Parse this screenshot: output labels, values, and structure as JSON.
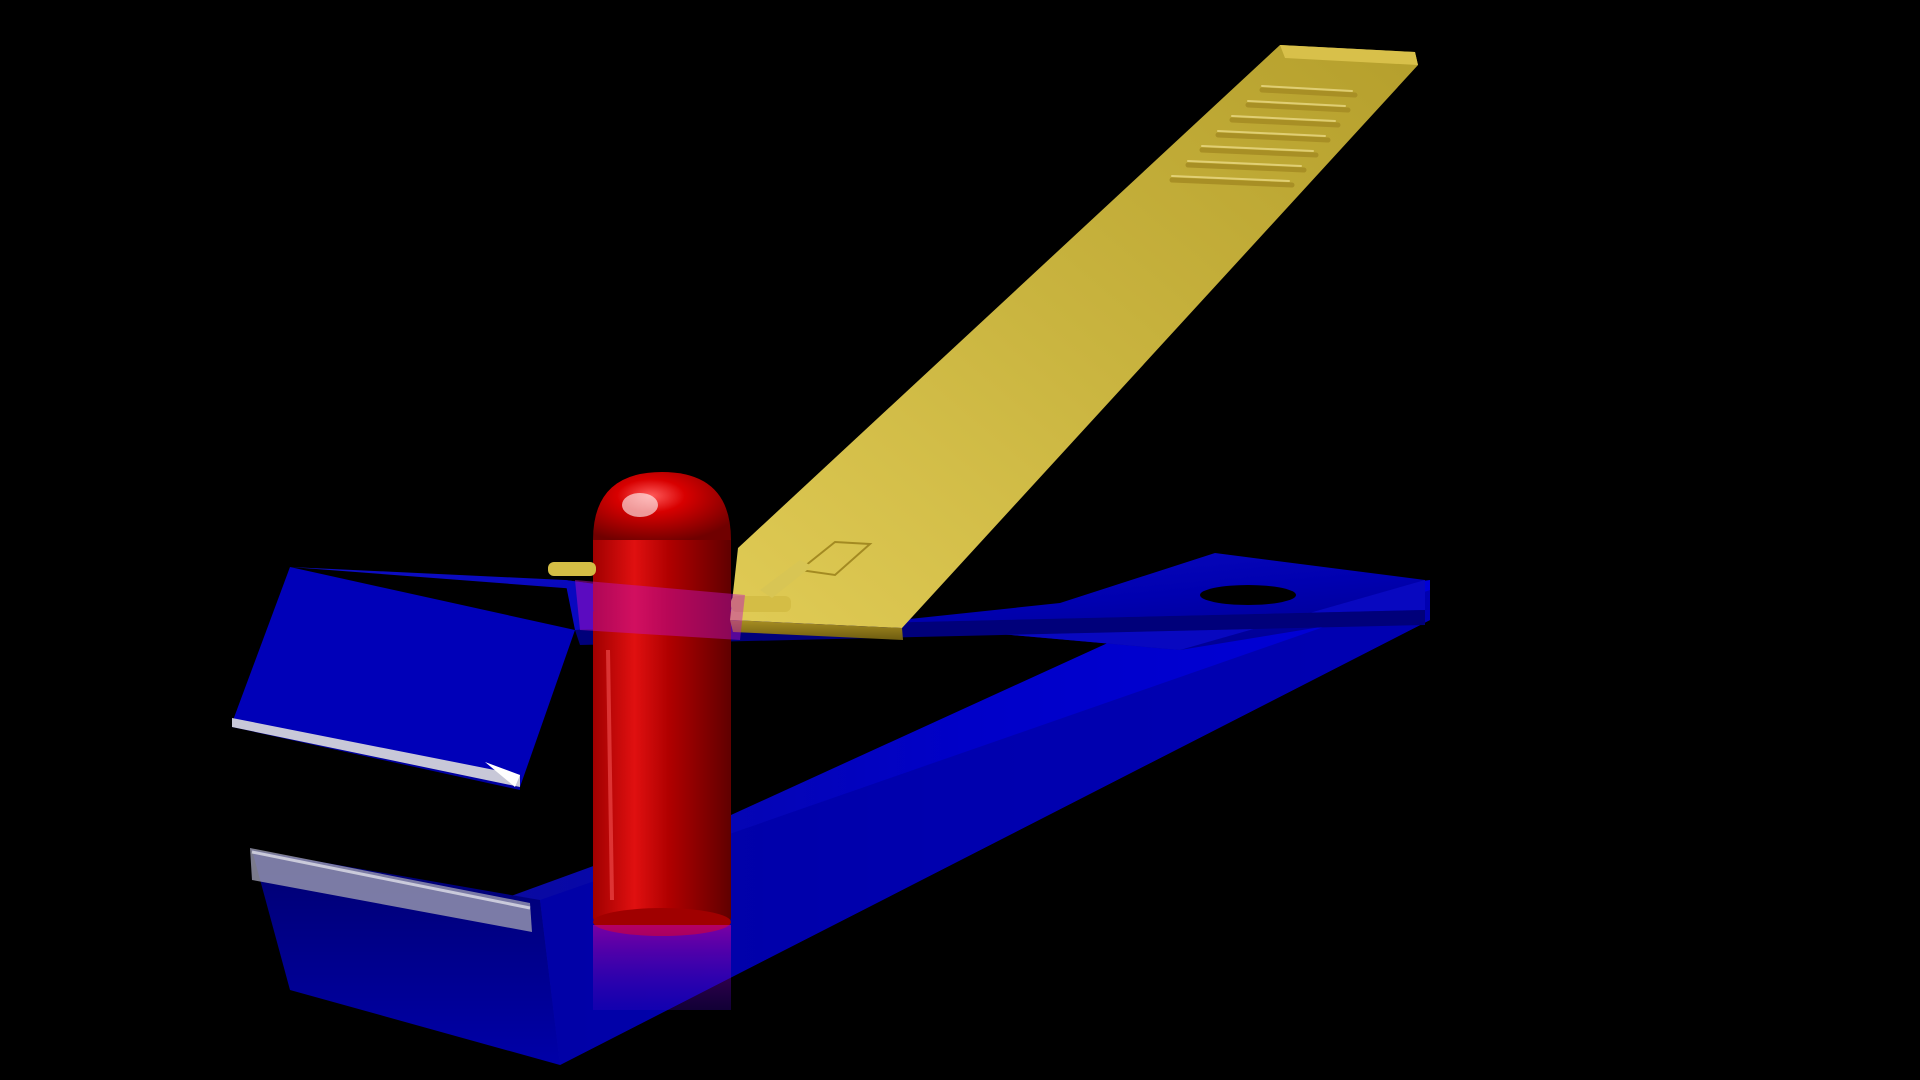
{
  "scene": {
    "background_color": "#000000",
    "subject": "nail-clipper-3d-render",
    "parts": [
      {
        "name": "lever-handle",
        "color": "#C9B23D"
      },
      {
        "name": "upper-jaw",
        "color": "#0000B8"
      },
      {
        "name": "lower-jaw",
        "color": "#0000C8"
      },
      {
        "name": "pivot-pin",
        "color": "#C80000"
      }
    ]
  }
}
